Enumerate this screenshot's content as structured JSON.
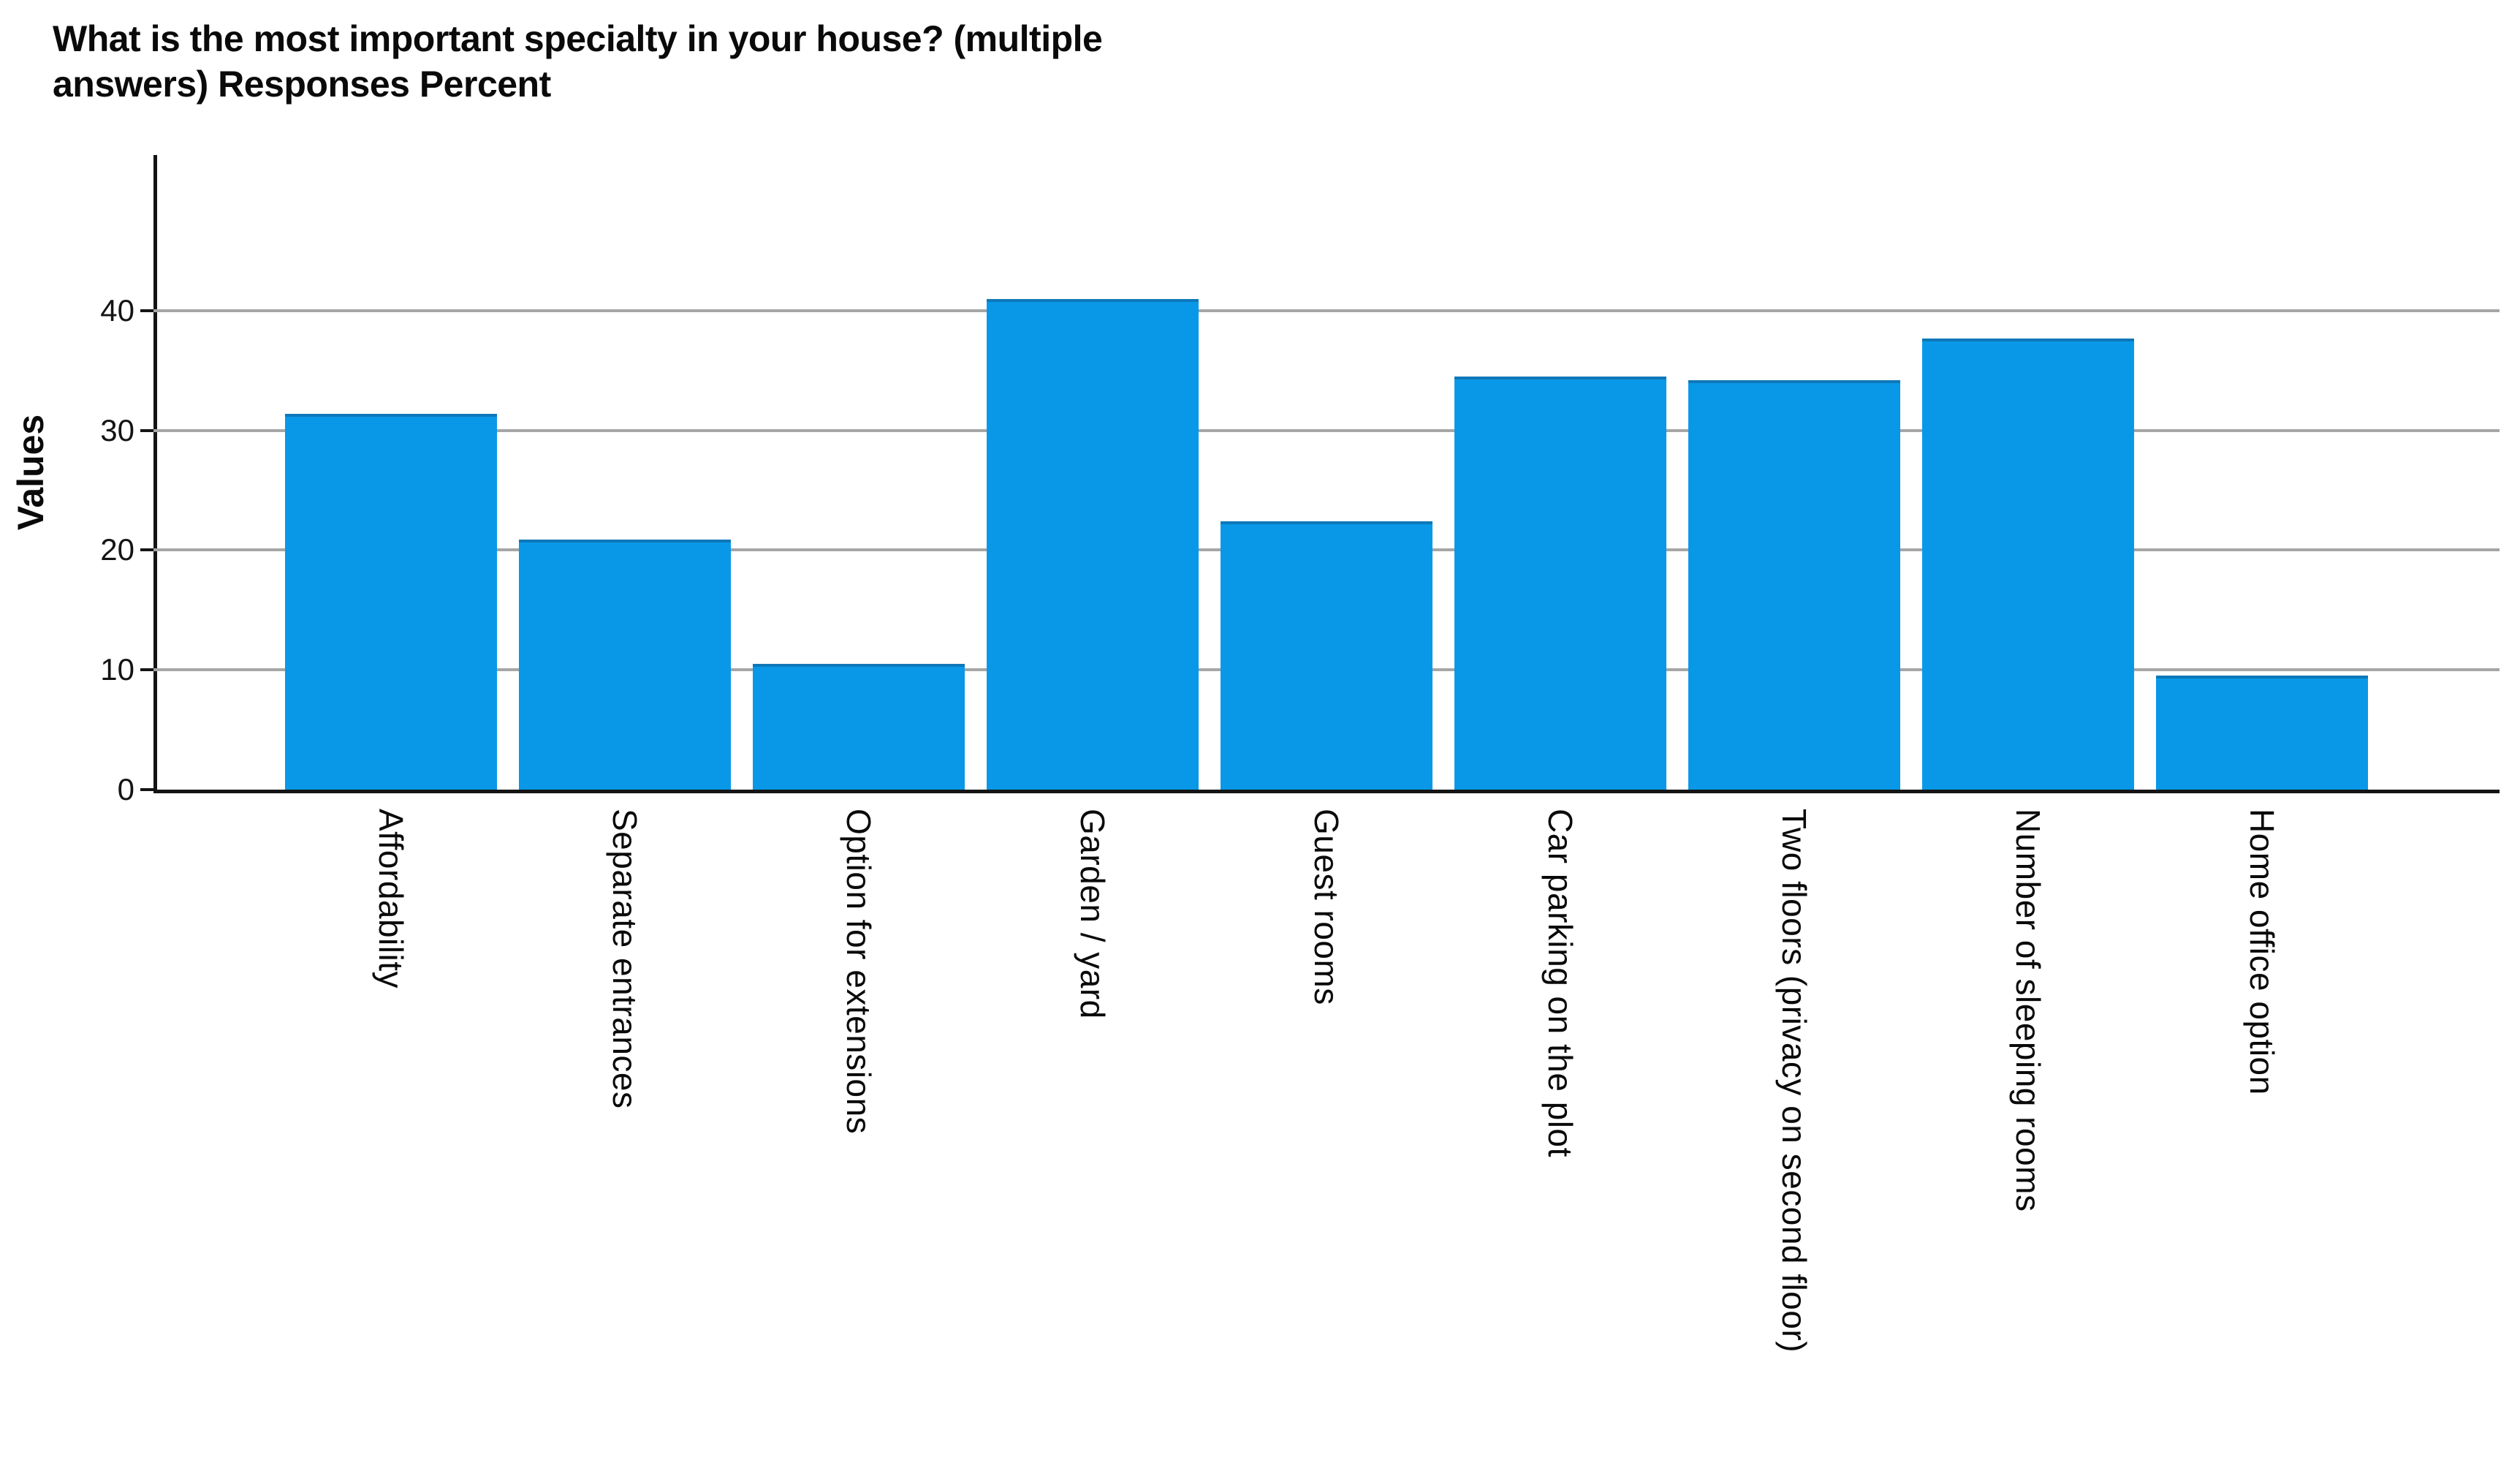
{
  "title": {
    "lines": [
      "What is the most important specialty in your house? (multiple",
      "answers) Responses Percent"
    ]
  },
  "chart_data": {
    "type": "bar",
    "title": "What is the most important specialty in your house? (multiple answers) Responses Percent",
    "ylabel": "Values",
    "xlabel": "",
    "categories": [
      "Affordability",
      "Separate entrances",
      "Option for extensions",
      "Garden / yard",
      "Guest rooms",
      "Car parking on the plot",
      "Two floors (privacy on second floor)",
      "Number of sleeping rooms",
      "Home office option"
    ],
    "values": [
      31.4,
      20.9,
      10.5,
      41.0,
      22.4,
      34.5,
      34.2,
      37.7,
      9.5
    ],
    "yticks": [
      0,
      10,
      20,
      30,
      40
    ],
    "ylim": [
      0,
      53
    ],
    "grid": "horizontal gridlines at y ticks, behind bars",
    "legend_position": "none",
    "category_label_rotation": "90deg (reads top to bottom)",
    "colors": {
      "bar_fill": "#0998E8",
      "bar_top_edge": "#175280",
      "gridline": "#A6A6A6",
      "axis": "#141414",
      "text": "#0A0A0A"
    }
  }
}
